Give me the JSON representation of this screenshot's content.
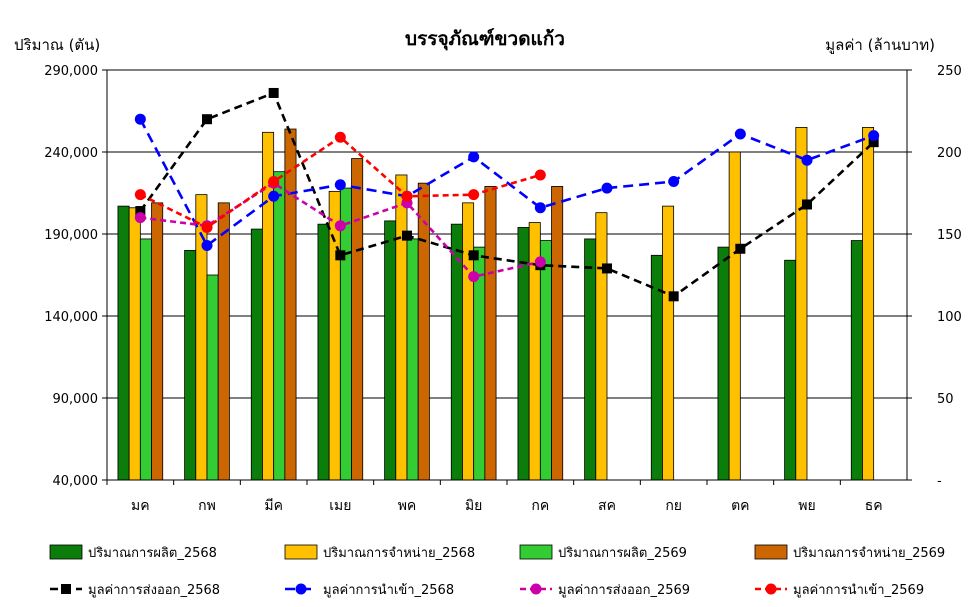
{
  "chart_data": {
    "type": "bar",
    "title": "บรรจุภัณฑ์ขวดแก้ว",
    "ylabel_left": "ปริมาณ (ตัน)",
    "ylabel_right": "มูลค่า (ล้านบาท)",
    "categories": [
      "มค",
      "กพ",
      "มีค",
      "เมย",
      "พค",
      "มิย",
      "กค",
      "สค",
      "กย",
      "ตค",
      "พย",
      "ธค"
    ],
    "y_left": {
      "lim": [
        40000,
        290000
      ],
      "ticks": [
        "40,000",
        "90,000",
        "140,000",
        "190,000",
        "240,000",
        "290,000"
      ],
      "tick_values": [
        40000,
        90000,
        140000,
        190000,
        240000,
        290000
      ]
    },
    "y_right": {
      "lim": [
        0,
        250
      ],
      "ticks": [
        "-",
        "50",
        "100",
        "150",
        "200",
        "250"
      ],
      "tick_values": [
        0,
        50,
        100,
        150,
        200,
        250
      ]
    },
    "grid": "horizontal",
    "legend_position": "bottom",
    "bar_series": [
      {
        "name": "ปริมาณการผลิต_2568",
        "color": "#0a7d0a",
        "values": [
          207000,
          180000,
          193000,
          196000,
          198000,
          196000,
          194000,
          187000,
          177000,
          182000,
          174000,
          186000
        ]
      },
      {
        "name": "ปริมาณการจำหน่าย_2568",
        "color": "#ffc000",
        "values": [
          206000,
          214000,
          252000,
          216000,
          226000,
          209000,
          197000,
          203000,
          207000,
          240000,
          255000,
          255000
        ]
      },
      {
        "name": "ปริมาณการผลิต_2569",
        "color": "#33cc33",
        "values": [
          187000,
          165000,
          228000,
          218000,
          187000,
          182000,
          186000,
          null,
          null,
          null,
          null,
          null
        ]
      },
      {
        "name": "ปริมาณการจำหน่าย_2569",
        "color": "#cc6600",
        "values": [
          209000,
          209000,
          254000,
          236000,
          221000,
          219000,
          219000,
          null,
          null,
          null,
          null,
          null
        ]
      }
    ],
    "line_series": [
      {
        "name": "มูลค่าการส่งออก_2568",
        "color": "#000000",
        "dash": "8,5",
        "marker": "square",
        "values": [
          164,
          220,
          236,
          137,
          149,
          137,
          131,
          129,
          112,
          141,
          168,
          206
        ]
      },
      {
        "name": "มูลค่าการนำเข้า_2568",
        "color": "#0000ff",
        "dash": "10,6",
        "marker": "circle",
        "values": [
          220,
          143,
          173,
          180,
          173,
          197,
          166,
          178,
          182,
          211,
          195,
          210
        ]
      },
      {
        "name": "มูลค่าการส่งออก_2569",
        "color": "#cc00aa",
        "dash": "6,4",
        "marker": "circle",
        "values": [
          160,
          155,
          181,
          155,
          169,
          124,
          133,
          null,
          null,
          null,
          null,
          null
        ]
      },
      {
        "name": "มูลค่าการนำเข้า_2569",
        "color": "#ff0000",
        "dash": "6,4",
        "marker": "circle",
        "values": [
          174,
          154,
          182,
          209,
          173,
          174,
          186,
          null,
          null,
          null,
          null,
          null
        ]
      }
    ]
  }
}
